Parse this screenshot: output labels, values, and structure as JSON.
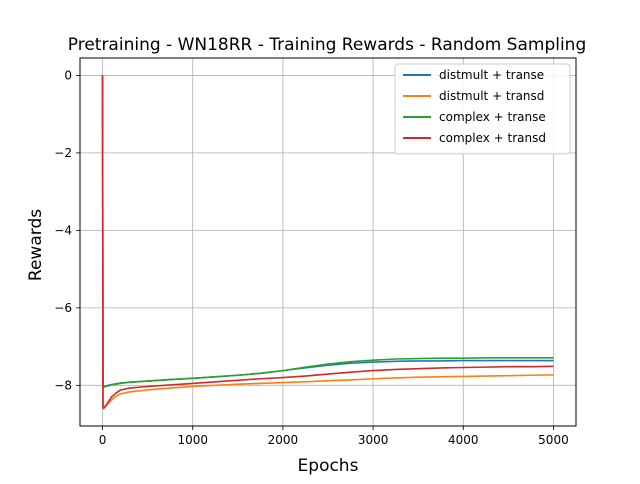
{
  "chart_data": {
    "type": "line",
    "title": "Pretraining - WN18RR - Training Rewards - Random Sampling",
    "xlabel": "Epochs",
    "ylabel": "Rewards",
    "xlim": [
      -250,
      5250
    ],
    "ylim": [
      -9.05,
      0.45
    ],
    "xticks": [
      0,
      1000,
      2000,
      3000,
      4000,
      5000
    ],
    "xtick_labels": [
      "0",
      "1000",
      "2000",
      "3000",
      "4000",
      "5000"
    ],
    "yticks": [
      0,
      -2,
      -4,
      -6,
      -8
    ],
    "ytick_labels": [
      "0",
      "−2",
      "−4",
      "−6",
      "−8"
    ],
    "grid": true,
    "legend_position": "top-right",
    "series": [
      {
        "name": "distmult + transe",
        "color": "#1f77b4",
        "x": [
          0,
          5,
          10,
          20,
          50,
          100,
          150,
          200,
          300,
          500,
          750,
          1000,
          1250,
          1500,
          1750,
          2000,
          2250,
          2500,
          2750,
          3000,
          3250,
          3500,
          3750,
          4000,
          4250,
          4500,
          4750,
          5000
        ],
        "y": [
          0,
          -8.05,
          -8.04,
          -8.03,
          -8.01,
          -7.98,
          -7.96,
          -7.94,
          -7.92,
          -7.89,
          -7.85,
          -7.82,
          -7.78,
          -7.74,
          -7.69,
          -7.62,
          -7.55,
          -7.48,
          -7.43,
          -7.4,
          -7.38,
          -7.37,
          -7.37,
          -7.36,
          -7.36,
          -7.36,
          -7.36,
          -7.36
        ]
      },
      {
        "name": "distmult + transd",
        "color": "#ff7f0e",
        "x": [
          0,
          5,
          10,
          20,
          50,
          100,
          150,
          200,
          300,
          500,
          750,
          1000,
          1250,
          1500,
          1750,
          2000,
          2250,
          2500,
          2750,
          3000,
          3250,
          3500,
          3750,
          4000,
          4250,
          4500,
          4750,
          5000
        ],
        "y": [
          0,
          -8.55,
          -8.6,
          -8.58,
          -8.5,
          -8.38,
          -8.28,
          -8.22,
          -8.17,
          -8.12,
          -8.07,
          -8.03,
          -8.0,
          -7.97,
          -7.95,
          -7.93,
          -7.91,
          -7.88,
          -7.86,
          -7.83,
          -7.81,
          -7.79,
          -7.78,
          -7.77,
          -7.76,
          -7.75,
          -7.74,
          -7.73
        ]
      },
      {
        "name": "complex + transe",
        "color": "#2ca02c",
        "x": [
          0,
          5,
          10,
          20,
          50,
          100,
          150,
          200,
          300,
          500,
          750,
          1000,
          1250,
          1500,
          1750,
          2000,
          2250,
          2500,
          2750,
          3000,
          3250,
          3500,
          3750,
          4000,
          4250,
          4500,
          4750,
          5000
        ],
        "y": [
          0,
          -8.06,
          -8.05,
          -8.04,
          -8.02,
          -7.99,
          -7.97,
          -7.95,
          -7.92,
          -7.89,
          -7.85,
          -7.82,
          -7.78,
          -7.74,
          -7.69,
          -7.62,
          -7.53,
          -7.45,
          -7.39,
          -7.35,
          -7.32,
          -7.31,
          -7.3,
          -7.3,
          -7.29,
          -7.29,
          -7.29,
          -7.29
        ]
      },
      {
        "name": "complex + transd",
        "color": "#d62728",
        "x": [
          0,
          5,
          10,
          20,
          50,
          100,
          150,
          200,
          300,
          500,
          750,
          1000,
          1250,
          1500,
          1750,
          2000,
          2250,
          2500,
          2750,
          3000,
          3250,
          3500,
          3750,
          4000,
          4250,
          4500,
          4750,
          5000
        ],
        "y": [
          0,
          -8.55,
          -8.6,
          -8.57,
          -8.48,
          -8.3,
          -8.2,
          -8.12,
          -8.07,
          -8.03,
          -7.99,
          -7.95,
          -7.91,
          -7.87,
          -7.83,
          -7.8,
          -7.76,
          -7.71,
          -7.66,
          -7.62,
          -7.59,
          -7.57,
          -7.55,
          -7.54,
          -7.53,
          -7.52,
          -7.52,
          -7.51
        ]
      }
    ]
  }
}
